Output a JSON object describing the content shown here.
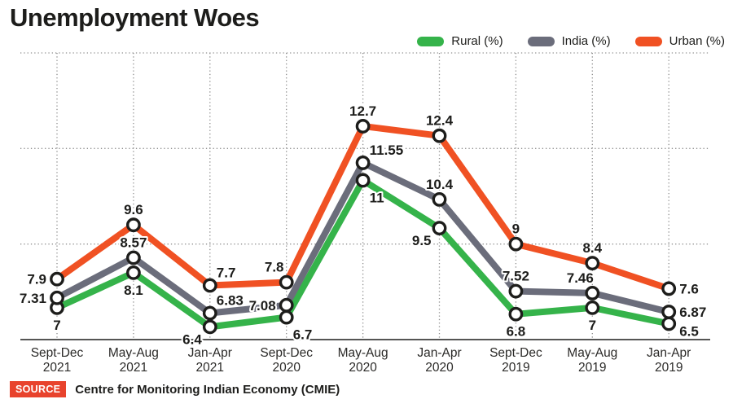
{
  "title": "Unemployment Woes",
  "legend": [
    {
      "label": "Rural (%)",
      "color": "#35b34a"
    },
    {
      "label": "India (%)",
      "color": "#6b6d7b"
    },
    {
      "label": "Urban (%)",
      "color": "#f05123"
    }
  ],
  "source": {
    "badge": "SOURCE",
    "text": "Centre for Monitoring Indian Economy (CMIE)",
    "badge_color": "#e8432d"
  },
  "colors": {
    "grid": "#8f8f8f",
    "axis": "#1d1d1b",
    "marker_fill": "#ffffff",
    "marker_stroke": "#1d1d1b",
    "label_text": "#1d1d1b"
  },
  "chart_data": {
    "type": "line",
    "categories": [
      [
        "Sept-Dec",
        "2021"
      ],
      [
        "May-Aug",
        "2021"
      ],
      [
        "Jan-Apr",
        "2021"
      ],
      [
        "Sept-Dec",
        "2020"
      ],
      [
        "May-Aug",
        "2020"
      ],
      [
        "Jan-Apr",
        "2020"
      ],
      [
        "Sept-Dec",
        "2019"
      ],
      [
        "May-Aug",
        "2019"
      ],
      [
        "Jan-Apr",
        "2019"
      ]
    ],
    "series": [
      {
        "name": "Rural (%)",
        "color": "#35b34a",
        "values": [
          7,
          8.1,
          6.4,
          6.7,
          11,
          9.5,
          6.8,
          7,
          6.5
        ],
        "label_pos": [
          "below",
          "below",
          "below-left",
          "below-right",
          "below-right",
          "below-left",
          "below",
          "below",
          "right-down"
        ]
      },
      {
        "name": "India (%)",
        "color": "#6b6d7b",
        "values": [
          7.31,
          8.57,
          6.83,
          7.08,
          11.55,
          10.4,
          7.52,
          7.46,
          6.87
        ],
        "label_pos": [
          "left",
          "above",
          "above-right",
          "left",
          "above-right",
          "above",
          "above",
          "above-left",
          "right"
        ]
      },
      {
        "name": "Urban (%)",
        "color": "#f05123",
        "values": [
          7.9,
          9.6,
          7.7,
          7.8,
          12.7,
          12.4,
          9,
          8.4,
          7.6
        ],
        "label_pos": [
          "left",
          "above",
          "above-right",
          "above-left",
          "above",
          "above",
          "above",
          "above",
          "right"
        ]
      }
    ],
    "ylim": [
      6,
      15
    ],
    "grid": {
      "horizontal_values": [
        9,
        12,
        15
      ],
      "style": "dotted",
      "vertical": "per-category"
    },
    "legend_position": "top-right",
    "marker": "open-circle",
    "value_labels": true,
    "xlabel": "",
    "ylabel": ""
  }
}
